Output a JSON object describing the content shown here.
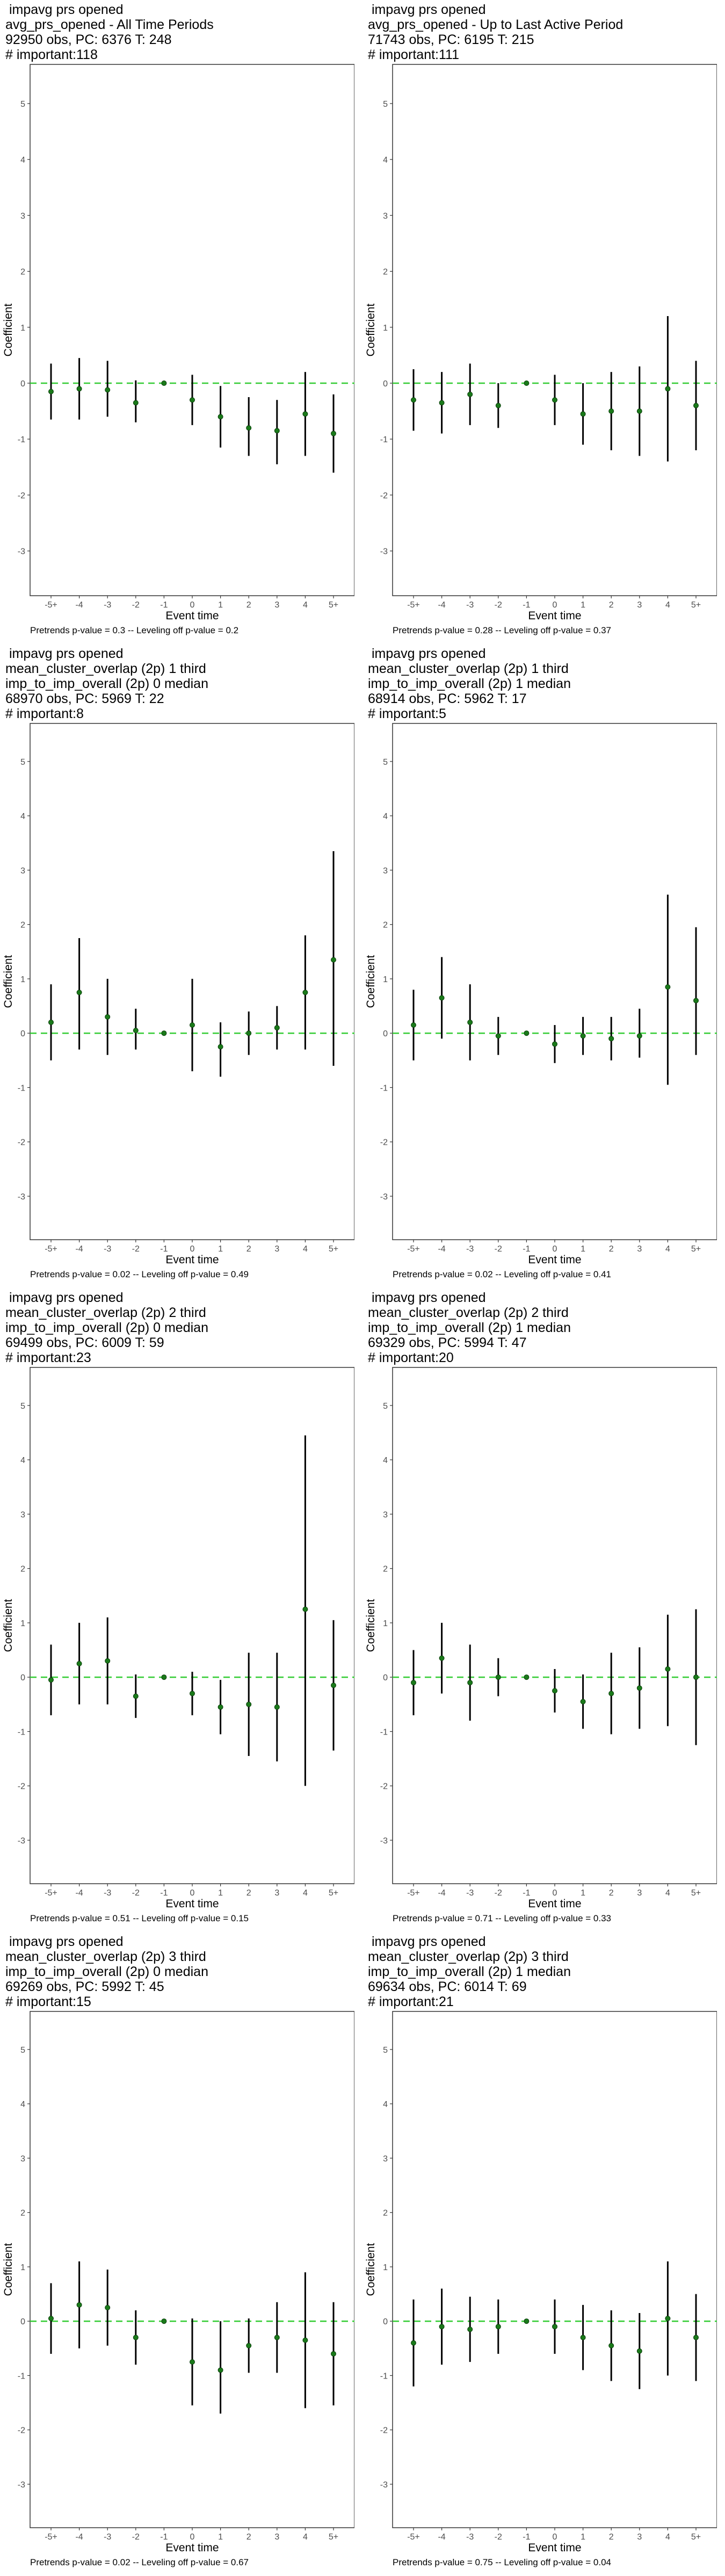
{
  "ylabel": "Coefficient",
  "xlabel": "Event time",
  "x_ticks": [
    "-5+",
    "-4",
    "-3",
    "-2",
    "-1",
    "0",
    "1",
    "2",
    "3",
    "4",
    "5+"
  ],
  "y_ticks": [
    "-3",
    "-2",
    "-1",
    "0",
    "1",
    "2",
    "3",
    "4",
    "5"
  ],
  "colors": {
    "point": "#1a7a1a",
    "ci": "#000000",
    "zero_line": "#33cc33"
  },
  "panels": [
    {
      "title_lines": [
        " impavg prs opened",
        "avg_prs_opened - All Time Periods",
        "92950 obs, PC: 6376 T: 248",
        "# important:118"
      ],
      "footer": "Pretrends p-value = 0.3 -- Leveling off p-value = 0.2"
    },
    {
      "title_lines": [
        " impavg prs opened",
        "avg_prs_opened - Up to Last Active Period",
        "71743 obs, PC: 6195 T: 215",
        "# important:111"
      ],
      "footer": "Pretrends p-value = 0.28 -- Leveling off p-value = 0.37"
    },
    {
      "title_lines": [
        " impavg prs opened",
        "mean_cluster_overlap (2p) 1 third",
        "imp_to_imp_overall (2p) 0 median",
        "68970 obs, PC: 5969 T: 22",
        "# important:8"
      ],
      "footer": "Pretrends p-value = 0.02 -- Leveling off p-value = 0.49"
    },
    {
      "title_lines": [
        " impavg prs opened",
        "mean_cluster_overlap (2p) 1 third",
        "imp_to_imp_overall (2p) 1 median",
        "68914 obs, PC: 5962 T: 17",
        "# important:5"
      ],
      "footer": "Pretrends p-value = 0.02 -- Leveling off p-value = 0.41"
    },
    {
      "title_lines": [
        " impavg prs opened",
        "mean_cluster_overlap (2p) 2 third",
        "imp_to_imp_overall (2p) 0 median",
        "69499 obs, PC: 6009 T: 59",
        "# important:23"
      ],
      "footer": "Pretrends p-value = 0.51 -- Leveling off p-value = 0.15"
    },
    {
      "title_lines": [
        " impavg prs opened",
        "mean_cluster_overlap (2p) 2 third",
        "imp_to_imp_overall (2p) 1 median",
        "69329 obs, PC: 5994 T: 47",
        "# important:20"
      ],
      "footer": "Pretrends p-value = 0.71 -- Leveling off p-value = 0.33"
    },
    {
      "title_lines": [
        " impavg prs opened",
        "mean_cluster_overlap (2p) 3 third",
        "imp_to_imp_overall (2p) 0 median",
        "69269 obs, PC: 5992 T: 45",
        "# important:15"
      ],
      "footer": "Pretrends p-value = 0.02 -- Leveling off p-value = 0.67"
    },
    {
      "title_lines": [
        " impavg prs opened",
        "mean_cluster_overlap (2p) 3 third",
        "imp_to_imp_overall (2p) 1 median",
        "69634 obs, PC: 6014 T: 69",
        "# important:21"
      ],
      "footer": "Pretrends p-value = 0.75 -- Leveling off p-value = 0.04"
    }
  ],
  "chart_data": [
    {
      "type": "scatter",
      "x": [
        "-5+",
        "-4",
        "-3",
        "-2",
        "-1",
        "0",
        "1",
        "2",
        "3",
        "4",
        "5+"
      ],
      "ylim": [
        -3.8,
        5.7
      ],
      "series": [
        {
          "values": [
            -0.15,
            -0.1,
            -0.12,
            -0.35,
            0,
            -0.3,
            -0.6,
            -0.8,
            -0.85,
            -0.55,
            -0.9
          ],
          "ci_low": [
            -0.65,
            -0.65,
            -0.6,
            -0.7,
            0,
            -0.75,
            -1.15,
            -1.3,
            -1.45,
            -1.3,
            -1.6
          ],
          "ci_high": [
            0.35,
            0.45,
            0.4,
            0.05,
            0,
            0.15,
            -0.05,
            -0.25,
            -0.3,
            0.2,
            -0.2
          ]
        }
      ]
    },
    {
      "type": "scatter",
      "x": [
        "-5+",
        "-4",
        "-3",
        "-2",
        "-1",
        "0",
        "1",
        "2",
        "3",
        "4",
        "5+"
      ],
      "ylim": [
        -3.8,
        5.7
      ],
      "series": [
        {
          "values": [
            -0.3,
            -0.35,
            -0.2,
            -0.4,
            0,
            -0.3,
            -0.55,
            -0.5,
            -0.5,
            -0.1,
            -0.4
          ],
          "ci_low": [
            -0.85,
            -0.9,
            -0.75,
            -0.8,
            0,
            -0.75,
            -1.1,
            -1.2,
            -1.3,
            -1.4,
            -1.2
          ],
          "ci_high": [
            0.25,
            0.2,
            0.35,
            0.0,
            0,
            0.15,
            0.0,
            0.2,
            0.3,
            1.2,
            0.4
          ]
        }
      ]
    },
    {
      "type": "scatter",
      "x": [
        "-5+",
        "-4",
        "-3",
        "-2",
        "-1",
        "0",
        "1",
        "2",
        "3",
        "4",
        "5+"
      ],
      "ylim": [
        -3.8,
        5.7
      ],
      "series": [
        {
          "values": [
            0.2,
            0.75,
            0.3,
            0.05,
            0,
            0.15,
            -0.25,
            0.0,
            0.1,
            0.75,
            1.35
          ],
          "ci_low": [
            -0.5,
            -0.3,
            -0.4,
            -0.3,
            0,
            -0.7,
            -0.8,
            -0.4,
            -0.3,
            -0.3,
            -0.6
          ],
          "ci_high": [
            0.9,
            1.75,
            1.0,
            0.45,
            0,
            1.0,
            0.2,
            0.4,
            0.5,
            1.8,
            3.35
          ]
        }
      ]
    },
    {
      "type": "scatter",
      "x": [
        "-5+",
        "-4",
        "-3",
        "-2",
        "-1",
        "0",
        "1",
        "2",
        "3",
        "4",
        "5+"
      ],
      "ylim": [
        -3.8,
        5.7
      ],
      "series": [
        {
          "values": [
            0.15,
            0.65,
            0.2,
            -0.05,
            0,
            -0.2,
            -0.05,
            -0.1,
            -0.05,
            0.85,
            0.6
          ],
          "ci_low": [
            -0.5,
            -0.1,
            -0.5,
            -0.4,
            0,
            -0.55,
            -0.4,
            -0.5,
            -0.45,
            -0.95,
            -0.4
          ],
          "ci_high": [
            0.8,
            1.4,
            0.9,
            0.3,
            0,
            0.15,
            0.3,
            0.3,
            0.45,
            2.55,
            1.95
          ]
        }
      ]
    },
    {
      "type": "scatter",
      "x": [
        "-5+",
        "-4",
        "-3",
        "-2",
        "-1",
        "0",
        "1",
        "2",
        "3",
        "4",
        "5+"
      ],
      "ylim": [
        -3.8,
        5.7
      ],
      "series": [
        {
          "values": [
            -0.05,
            0.25,
            0.3,
            -0.35,
            0,
            -0.3,
            -0.55,
            -0.5,
            -0.55,
            1.25,
            -0.15
          ],
          "ci_low": [
            -0.7,
            -0.5,
            -0.5,
            -0.75,
            0,
            -0.7,
            -1.05,
            -1.45,
            -1.55,
            -2.0,
            -1.35
          ],
          "ci_high": [
            0.6,
            1.0,
            1.1,
            0.05,
            0,
            0.1,
            -0.05,
            0.45,
            0.45,
            4.45,
            1.05
          ]
        }
      ]
    },
    {
      "type": "scatter",
      "x": [
        "-5+",
        "-4",
        "-3",
        "-2",
        "-1",
        "0",
        "1",
        "2",
        "3",
        "4",
        "5+"
      ],
      "ylim": [
        -3.8,
        5.7
      ],
      "series": [
        {
          "values": [
            -0.1,
            0.35,
            -0.1,
            0.0,
            0,
            -0.25,
            -0.45,
            -0.3,
            -0.2,
            0.15,
            0.0
          ],
          "ci_low": [
            -0.7,
            -0.3,
            -0.8,
            -0.35,
            0,
            -0.65,
            -0.95,
            -1.05,
            -0.95,
            -0.9,
            -1.25
          ],
          "ci_high": [
            0.5,
            1.0,
            0.6,
            0.35,
            0,
            0.15,
            0.05,
            0.45,
            0.55,
            1.15,
            1.25
          ]
        }
      ]
    },
    {
      "type": "scatter",
      "x": [
        "-5+",
        "-4",
        "-3",
        "-2",
        "-1",
        "0",
        "1",
        "2",
        "3",
        "4",
        "5+"
      ],
      "ylim": [
        -3.8,
        5.7
      ],
      "series": [
        {
          "values": [
            0.05,
            0.3,
            0.25,
            -0.3,
            0,
            -0.75,
            -0.9,
            -0.45,
            -0.3,
            -0.35,
            -0.6
          ],
          "ci_low": [
            -0.6,
            -0.5,
            -0.45,
            -0.8,
            0,
            -1.55,
            -1.7,
            -0.95,
            -0.95,
            -1.6,
            -1.55
          ],
          "ci_high": [
            0.7,
            1.1,
            0.95,
            0.2,
            0,
            0.05,
            0.0,
            0.05,
            0.35,
            0.9,
            0.35
          ]
        }
      ]
    },
    {
      "type": "scatter",
      "x": [
        "-5+",
        "-4",
        "-3",
        "-2",
        "-1",
        "0",
        "1",
        "2",
        "3",
        "4",
        "5+"
      ],
      "ylim": [
        -3.8,
        5.7
      ],
      "series": [
        {
          "values": [
            -0.4,
            -0.1,
            -0.15,
            -0.1,
            0,
            -0.1,
            -0.3,
            -0.45,
            -0.55,
            0.05,
            -0.3
          ],
          "ci_low": [
            -1.2,
            -0.8,
            -0.75,
            -0.6,
            0,
            -0.6,
            -0.9,
            -1.1,
            -1.25,
            -1.0,
            -1.1
          ],
          "ci_high": [
            0.4,
            0.6,
            0.45,
            0.4,
            0,
            0.4,
            0.3,
            0.2,
            0.15,
            1.1,
            0.5
          ]
        }
      ]
    }
  ]
}
